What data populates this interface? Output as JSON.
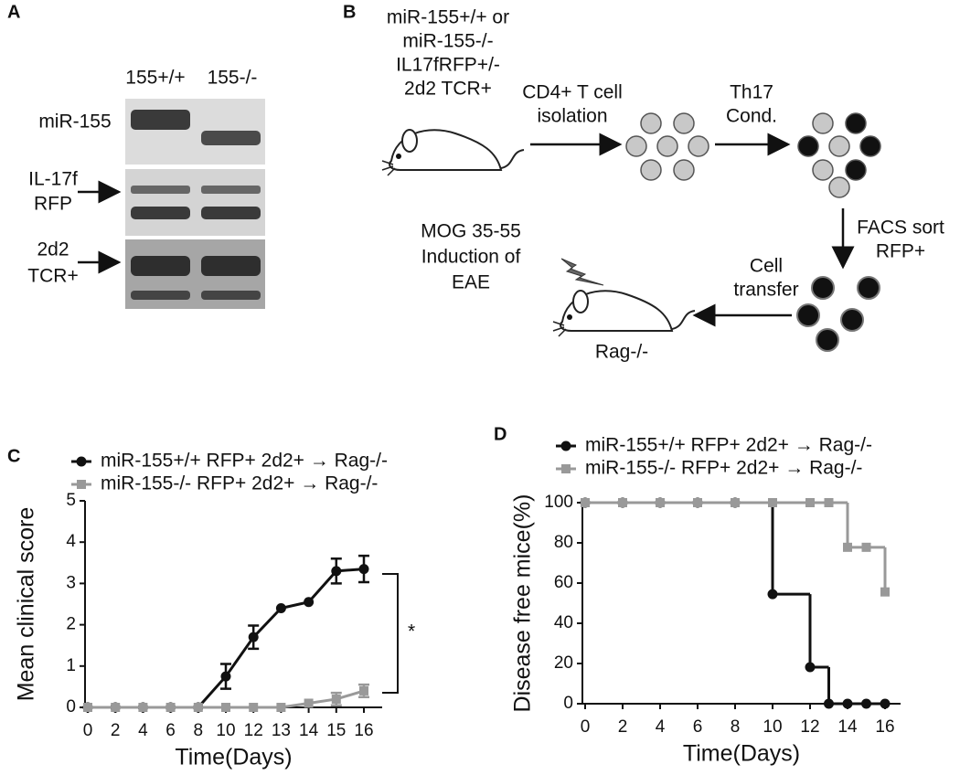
{
  "panel_a": {
    "label": "A",
    "columns": [
      "155+/+",
      "155-/-"
    ],
    "rows": [
      {
        "lines": [
          "miR-155"
        ]
      },
      {
        "lines": [
          "IL-17f",
          "RFP"
        ]
      },
      {
        "lines": [
          "2d2",
          "TCR+"
        ]
      }
    ]
  },
  "panel_b": {
    "label": "B",
    "donor": {
      "lines": [
        "miR-155+/+ or",
        "miR-155-/-",
        "IL17fRFP+/-",
        "2d2 TCR+"
      ]
    },
    "step1": {
      "lines": [
        "CD4+ T cell",
        "isolation"
      ]
    },
    "step2": {
      "lines": [
        "Th17",
        "Cond."
      ]
    },
    "step3": {
      "lines": [
        "FACS sort",
        "RFP+"
      ]
    },
    "step4": {
      "lines": [
        "Cell",
        "transfer"
      ]
    },
    "induction": {
      "lines": [
        "MOG 35-55",
        "Induction of",
        "EAE"
      ]
    },
    "recipient": "Rag-/-"
  },
  "chart_data": [
    {
      "type": "line",
      "label": "C",
      "x_label": "Time(Days)",
      "y_label": "Mean clinical score",
      "categories": [
        0,
        2,
        4,
        6,
        8,
        10,
        12,
        13,
        14,
        15,
        16
      ],
      "series": [
        {
          "name": "miR-155+/+ RFP+ 2d2+ → Rag-/-",
          "color": "#111111",
          "marker": "circle",
          "values": [
            0,
            0,
            0,
            0,
            0,
            0.75,
            1.7,
            2.4,
            2.55,
            3.3,
            3.35
          ],
          "errors": [
            0,
            0,
            0,
            0,
            0,
            0.3,
            0.28,
            0,
            0,
            0.3,
            0.32
          ]
        },
        {
          "name": "miR-155-/- RFP+ 2d2+ → Rag-/-",
          "color": "#999999",
          "marker": "square",
          "values": [
            0,
            0,
            0,
            0,
            0,
            0,
            0,
            0,
            0.1,
            0.2,
            0.4
          ],
          "errors": [
            0,
            0,
            0,
            0,
            0,
            0,
            0,
            0,
            0,
            0.15,
            0.15
          ]
        }
      ],
      "ylim": [
        0,
        5
      ],
      "yticks": [
        0,
        1,
        2,
        3,
        4,
        5
      ],
      "annotation": "*"
    },
    {
      "type": "step",
      "label": "D",
      "x_label": "Time(Days)",
      "y_label": "Disease free mice(%)",
      "x": [
        0,
        2,
        4,
        6,
        8,
        10,
        12,
        13,
        14,
        15,
        16
      ],
      "series": [
        {
          "name": "miR-155+/+ RFP+ 2d2+ → Rag-/-",
          "color": "#111111",
          "marker": "circle",
          "values": [
            100,
            100,
            100,
            100,
            100,
            54.5,
            18.2,
            0,
            0,
            0,
            0
          ]
        },
        {
          "name": "miR-155-/- RFP+ 2d2+ → Rag-/-",
          "color": "#999999",
          "marker": "square",
          "values": [
            100,
            100,
            100,
            100,
            100,
            100,
            100,
            100,
            77.8,
            77.8,
            55.6
          ]
        }
      ],
      "xlim": [
        0,
        16
      ],
      "xticks": [
        0,
        2,
        4,
        6,
        8,
        10,
        12,
        14,
        16
      ],
      "ylim": [
        0,
        100
      ],
      "yticks": [
        0,
        20,
        40,
        60,
        80,
        100
      ]
    }
  ]
}
